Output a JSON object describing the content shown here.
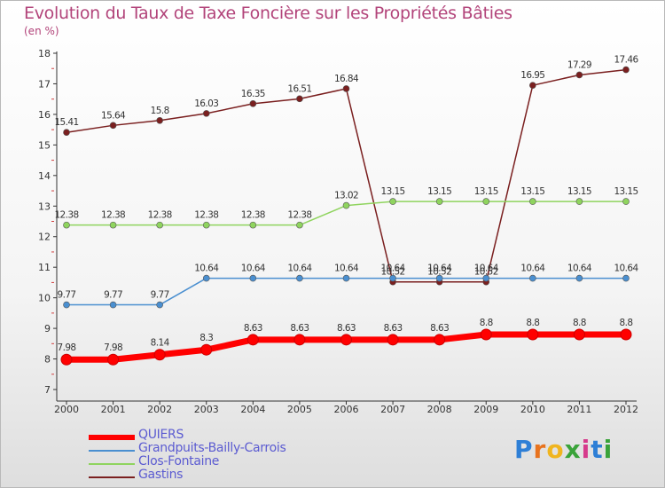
{
  "title": "Evolution du Taux de Taxe Foncière sur les Propriétés Bâties",
  "subtitle": "(en %)",
  "logo": {
    "text": "Proxiti",
    "letters": [
      "P",
      "r",
      "o",
      "x",
      "i",
      "t",
      "i"
    ],
    "colors": [
      "#2e7fd6",
      "#e8731e",
      "#f0b51f",
      "#3aa33a",
      "#d63a8c",
      "#2e7fd6",
      "#3aa33a"
    ]
  },
  "chart_data": {
    "type": "line",
    "title": "Evolution du Taux de Taxe Foncière sur les Propriétés Bâties",
    "ylabel": "(en %)",
    "xlabel": "",
    "x": [
      "2000",
      "2001",
      "2002",
      "2003",
      "2004",
      "2005",
      "2006",
      "2007",
      "2008",
      "2009",
      "2010",
      "2011",
      "2012"
    ],
    "ylim": [
      7,
      18
    ],
    "yticks": [
      "7",
      "8",
      "9",
      "10",
      "11",
      "12",
      "13",
      "14",
      "15",
      "16",
      "17",
      "18"
    ],
    "series": [
      {
        "name": "QUIERS",
        "color": "#ff0000",
        "values": [
          7.98,
          7.98,
          8.14,
          8.3,
          8.63,
          8.63,
          8.63,
          8.63,
          8.63,
          8.8,
          8.8,
          8.8,
          8.8
        ],
        "labels": [
          "7.98",
          "7.98",
          "8.14",
          "8.3",
          "8.63",
          "8.63",
          "8.63",
          "8.63",
          "8.63",
          "8.8",
          "8.8",
          "8.8",
          "8.8"
        ]
      },
      {
        "name": "Grandpuits-Bailly-Carrois",
        "color": "#4a8fd0",
        "values": [
          9.77,
          9.77,
          9.77,
          10.64,
          10.64,
          10.64,
          10.64,
          10.64,
          10.64,
          10.64,
          10.64,
          10.64,
          10.64
        ],
        "labels": [
          "9.77",
          "9.77",
          "9.77",
          "10.64",
          "10.64",
          "10.64",
          "10.64",
          "10.64",
          "10.64",
          "10.64",
          "10.64",
          "10.64",
          "10.64"
        ]
      },
      {
        "name": "Clos-Fontaine",
        "color": "#8fd45e",
        "values": [
          12.38,
          12.38,
          12.38,
          12.38,
          12.38,
          12.38,
          13.02,
          13.15,
          13.15,
          13.15,
          13.15,
          13.15,
          13.15
        ],
        "labels": [
          "12.38",
          "12.38",
          "12.38",
          "12.38",
          "12.38",
          "12.38",
          "13.02",
          "13.15",
          "13.15",
          "13.15",
          "13.15",
          "13.15",
          "13.15"
        ]
      },
      {
        "name": "Gastins",
        "color": "#7a1f1f",
        "values": [
          15.41,
          15.64,
          15.8,
          16.03,
          16.35,
          16.51,
          16.84,
          10.52,
          10.52,
          10.52,
          16.95,
          17.29,
          17.46
        ],
        "labels": [
          "15.41",
          "15.64",
          "15.8",
          "16.03",
          "16.35",
          "16.51",
          "16.84",
          "10.52",
          "10.52",
          "10.52",
          "16.95",
          "17.29",
          "17.46"
        ]
      }
    ],
    "legend_position": "bottom-left",
    "grid": false
  }
}
